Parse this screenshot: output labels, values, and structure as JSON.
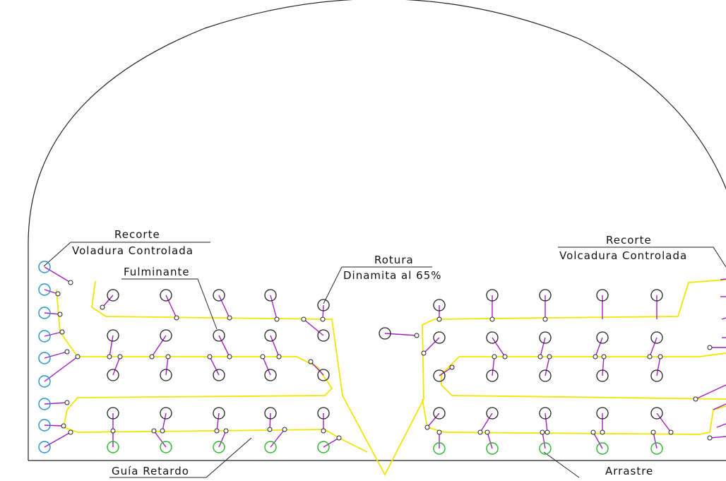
{
  "labels": {
    "recorte_left": "Recorte",
    "voladura_left": "Voladura Controlada",
    "fulminante": "Fulminante",
    "rotura": "Rotura",
    "dinamita": "Dinamita al 65%",
    "recorte_right": "Recorte",
    "voladura_right": "Volcadura Controlada",
    "guia": "Guía Retardo",
    "arrastre": "Arrastre"
  },
  "colors": {
    "outline": "#222222",
    "fuse": "#f2e600",
    "connector": "#a020c0",
    "recorte_hole": "#2a8fd8",
    "rotura_hole": "#222222",
    "arrastre_hole": "#2cb52c"
  }
}
